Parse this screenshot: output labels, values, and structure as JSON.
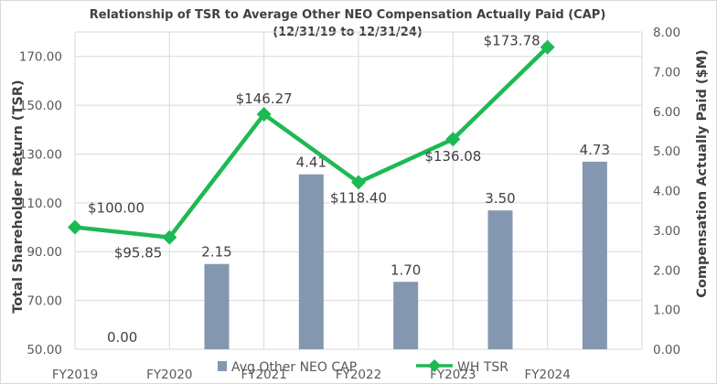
{
  "chart_data": {
    "type": "bar+line",
    "title": "Relationship of TSR to Average Other NEO Compensation Actually Paid (CAP)",
    "subtitle": "(12/31/19 to 12/31/24)",
    "categories": [
      "FY2019",
      "FY2020",
      "FY2021",
      "FY2022",
      "FY2023",
      "FY2024"
    ],
    "series": [
      {
        "name": "Avg Other NEO CAP",
        "type": "bar",
        "axis": "right",
        "color": "#8497b0",
        "values": [
          0.0,
          2.15,
          4.41,
          1.7,
          3.5,
          4.73
        ],
        "labels": [
          "0.00",
          "2.15",
          "4.41",
          "1.70",
          "3.50",
          "4.73"
        ]
      },
      {
        "name": "WH TSR",
        "type": "line",
        "axis": "left",
        "color": "#1db954",
        "values": [
          100.0,
          95.85,
          146.27,
          118.4,
          136.08,
          173.78
        ],
        "labels": [
          "$100.00",
          "$95.85",
          "$146.27",
          "$118.40",
          "$136.08",
          "$173.78"
        ]
      }
    ],
    "ylabel": "Total Shareholder Return (TSR)",
    "y2label": "Compensation Actually Paid ($M)",
    "ylim": [
      50,
      180
    ],
    "y2lim": [
      0,
      8
    ],
    "yticks": [
      "50.00",
      "70.00",
      "90.00",
      "110.00",
      "130.00",
      "150.00",
      "170.00"
    ],
    "y2ticks": [
      "0.00",
      "1.00",
      "2.00",
      "3.00",
      "4.00",
      "5.00",
      "6.00",
      "7.00",
      "8.00"
    ],
    "grid": true,
    "legend_position": "bottom"
  }
}
